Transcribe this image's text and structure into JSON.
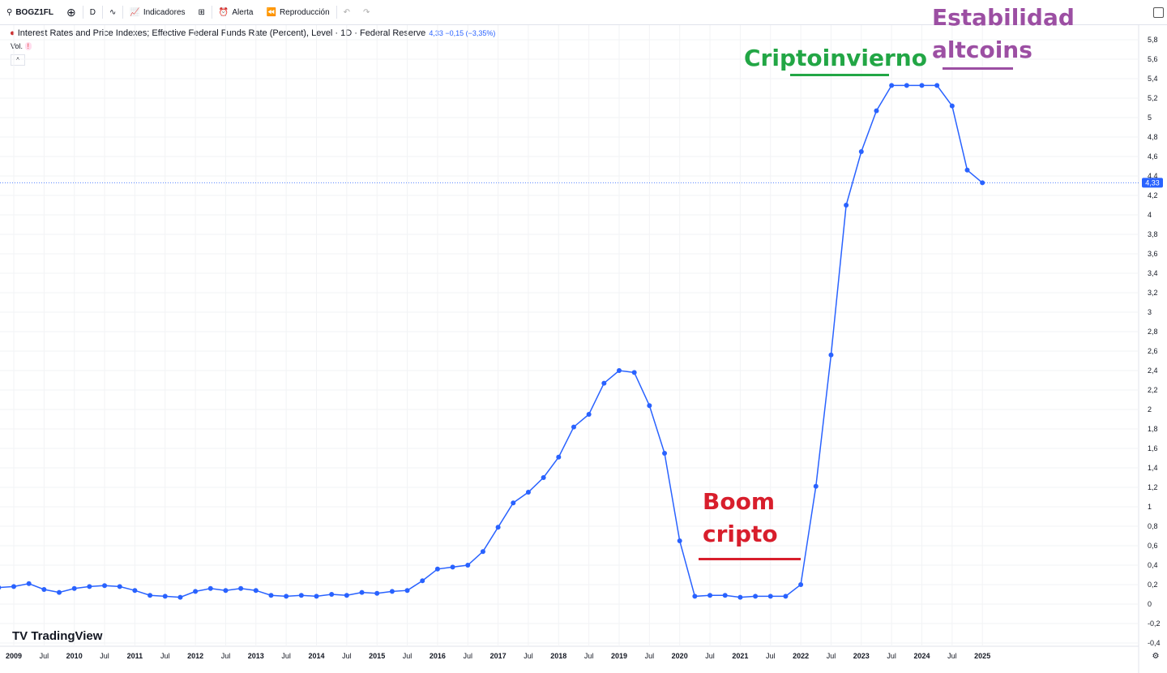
{
  "toolbar": {
    "symbol": "BOGZ1FL",
    "interval": "D",
    "indicators": "Indicadores",
    "alert": "Alerta",
    "replay": "Reproducción"
  },
  "legend": {
    "title": "Interest Rates and Price Indexes; Effective Federal Funds Rate (Percent), Level · 1D · Federal Reserve",
    "last": "4,33",
    "change": "−0,15 (−3,35%)",
    "vol": "Vol.",
    "vol_warning": "!"
  },
  "branding": "TradingView",
  "annotations": {
    "winter": "Criptoinvierno",
    "stab1": "Estabilidad",
    "stab2": "altcoins",
    "boom1": "Boom",
    "boom2": "cripto"
  },
  "colors": {
    "line": "#2962ff",
    "winter": "#22a645",
    "stability": "#9c4fa3",
    "boom": "#d81e2c"
  },
  "chart_data": {
    "type": "line",
    "ylim": [
      -0.4,
      5.8
    ],
    "y_ticks": [
      "-0,4",
      "-0,2",
      "0",
      "0,2",
      "0,4",
      "0,6",
      "0,8",
      "1",
      "1,2",
      "1,4",
      "1,6",
      "1,8",
      "2",
      "2,2",
      "2,4",
      "2,6",
      "2,8",
      "3",
      "3,2",
      "3,4",
      "3,6",
      "3,8",
      "4",
      "4,2",
      "4,4",
      "4,6",
      "4,8",
      "5",
      "5,2",
      "5,4",
      "5,6",
      "5,8"
    ],
    "x_ticks": [
      "2009",
      "Jul",
      "2010",
      "Jul",
      "2011",
      "Jul",
      "2012",
      "Jul",
      "2013",
      "Jul",
      "2014",
      "Jul",
      "2015",
      "Jul",
      "2016",
      "Jul",
      "2017",
      "Jul",
      "2018",
      "Jul",
      "2019",
      "Jul",
      "2020",
      "Jul",
      "2021",
      "Jul",
      "2022",
      "Jul",
      "2023",
      "Jul",
      "2024",
      "Jul",
      "2025"
    ],
    "last_price_label": "4,33",
    "x_start": "2008-10",
    "x_step": "quarter",
    "values": [
      0.17,
      0.18,
      0.21,
      0.15,
      0.12,
      0.16,
      0.18,
      0.19,
      0.18,
      0.14,
      0.09,
      0.08,
      0.07,
      0.13,
      0.16,
      0.14,
      0.16,
      0.14,
      0.09,
      0.08,
      0.09,
      0.08,
      0.1,
      0.09,
      0.12,
      0.11,
      0.13,
      0.14,
      0.24,
      0.36,
      0.38,
      0.4,
      0.54,
      0.79,
      1.04,
      1.15,
      1.3,
      1.51,
      1.82,
      1.95,
      2.27,
      2.4,
      2.38,
      2.04,
      1.55,
      0.65,
      0.08,
      0.09,
      0.09,
      0.07,
      0.08,
      0.08,
      0.08,
      0.2,
      1.21,
      2.56,
      4.1,
      4.65,
      5.07,
      5.33,
      5.33,
      5.33,
      5.33,
      5.12,
      4.46,
      4.33
    ]
  }
}
